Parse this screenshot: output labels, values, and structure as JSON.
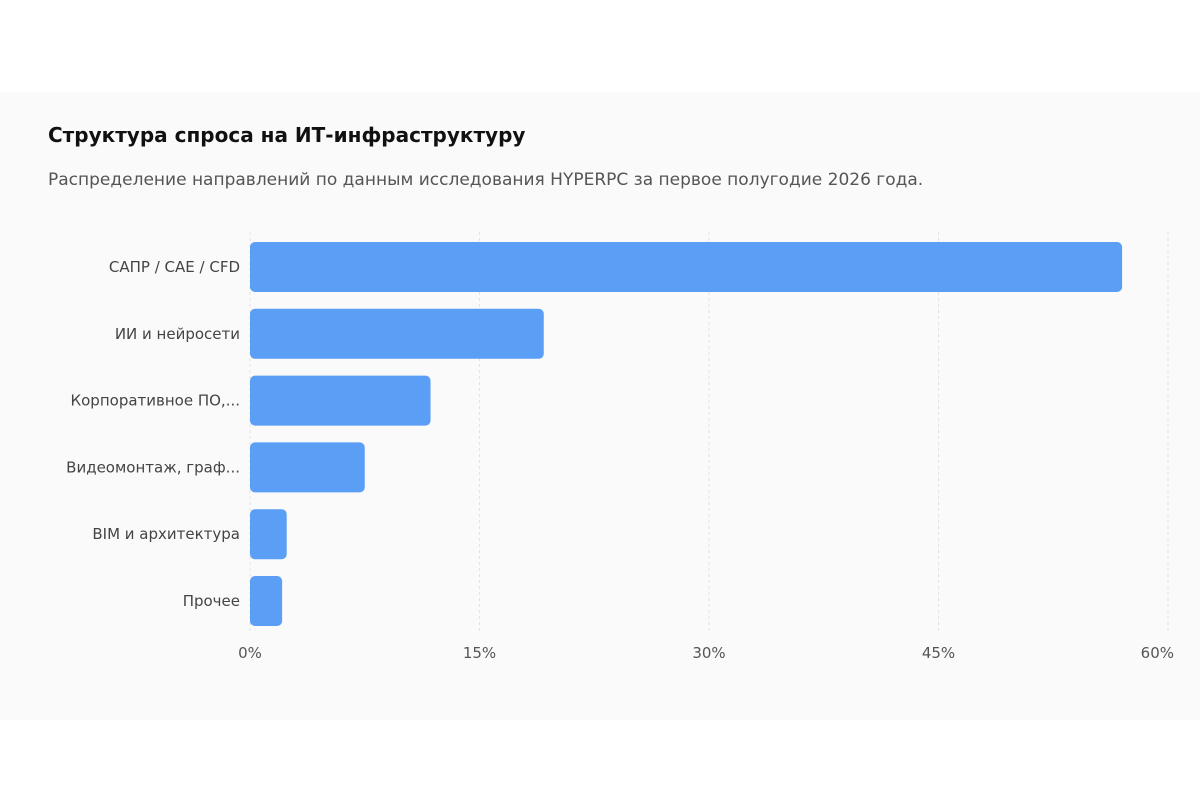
{
  "chart_data": {
    "type": "bar",
    "orientation": "horizontal",
    "title": "Структура спроса на ИТ-инфраструктуру",
    "subtitle": "Распределение направлений по данным исследования HYPERPC за первое полугодие 2026 года.",
    "categories": [
      "САПР / CAE / CFD",
      "ИИ и нейросети",
      "Корпоративное ПО,...",
      "Видеомонтаж, граф...",
      "BIM и архитектура",
      "Прочее"
    ],
    "values": [
      57,
      19.2,
      11.8,
      7.5,
      2.4,
      2.1
    ],
    "xlim": [
      0,
      60
    ],
    "x_ticks": [
      0,
      15,
      30,
      45,
      60
    ],
    "x_tick_labels": [
      "0%",
      "15%",
      "30%",
      "45%",
      "60%"
    ],
    "unit": "%",
    "grid": "vertical dashed",
    "legend": "none",
    "bar_color": "#5b9ef5"
  }
}
